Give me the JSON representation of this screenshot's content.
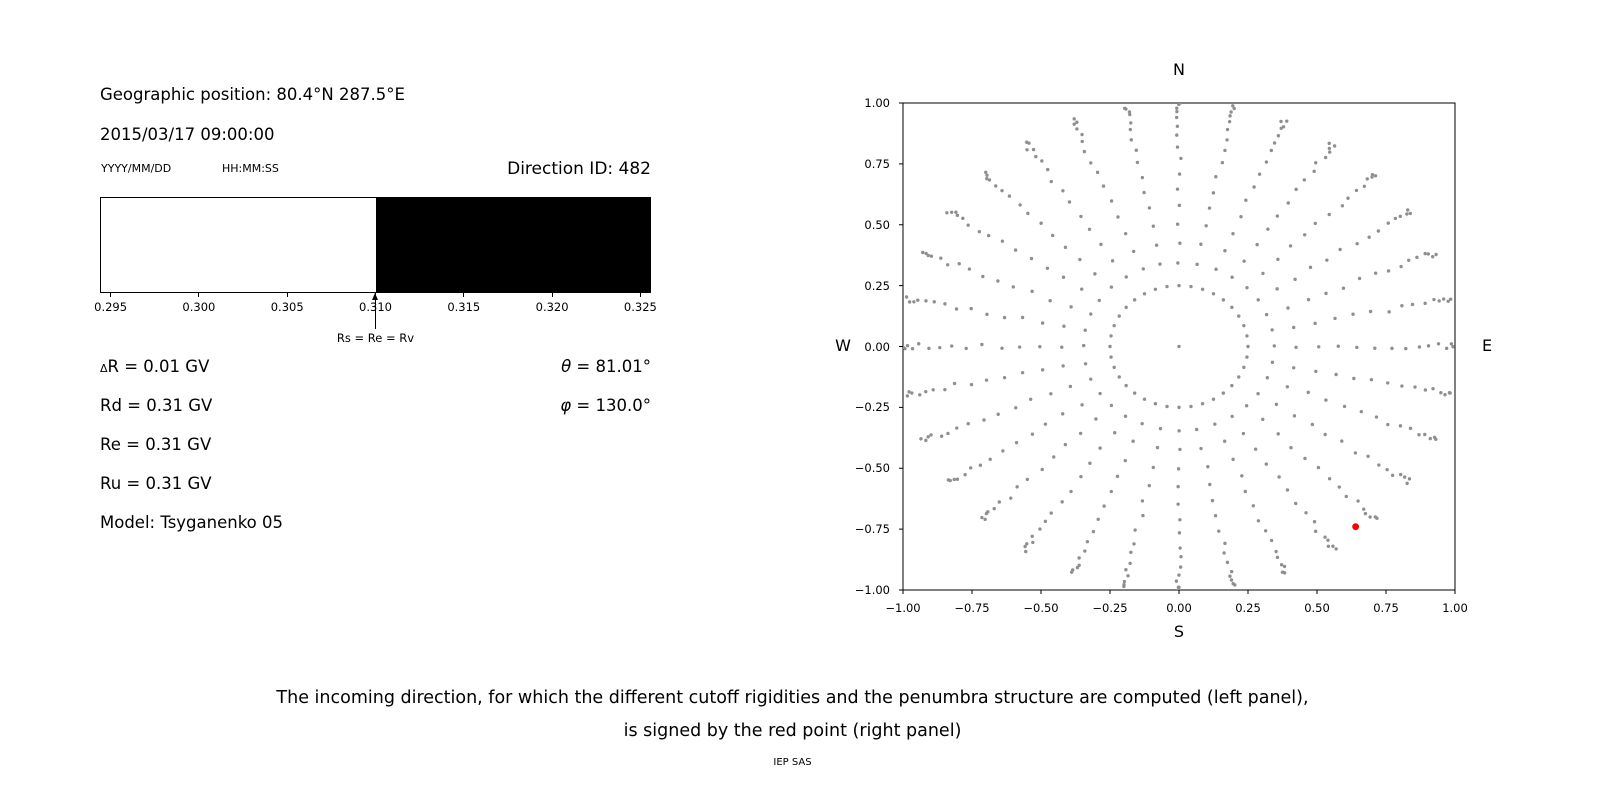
{
  "left_panel": {
    "geographic_position": "Geographic position: 80.4°N 287.5°E",
    "datetime": "2015/03/17 09:00:00",
    "date_format_label": "YYYY/MM/DD",
    "time_format_label": "HH:MM:SS",
    "direction_id": "Direction ID: 482",
    "delta_symbol": "Δ",
    "delta_r_text": "R = 0.01 GV",
    "rd": "Rd = 0.31 GV",
    "re": "Re = 0.31 GV",
    "ru": "Ru = 0.31 GV",
    "model": "Model: Tsyganenko 05",
    "theta_symbol": "θ",
    "theta_text": " = 81.01°",
    "phi_symbol": "φ",
    "phi_text": " = 130.0°"
  },
  "caption": {
    "line1": "The incoming direction, for which the different cutoff rigidities and the penumbra structure are computed (left panel),",
    "line2": "is signed by the red point (right panel)",
    "credit": "IEP SAS"
  },
  "chart_data": [
    {
      "type": "bar",
      "name": "penumbra-structure",
      "xlim": [
        0.2944,
        0.3256
      ],
      "bands": [
        {
          "from": 0.2944,
          "to": 0.31,
          "color": "#ffffff"
        },
        {
          "from": 0.31,
          "to": 0.3256,
          "color": "#000000"
        }
      ],
      "xticks": [
        0.295,
        0.3,
        0.305,
        0.31,
        0.315,
        0.32,
        0.325
      ],
      "xtick_labels": [
        "0.295",
        "0.300",
        "0.305",
        "0.310",
        "0.315",
        "0.320",
        "0.325"
      ],
      "annotation": {
        "x": 0.31,
        "label": "Rs = Re = Rv"
      }
    },
    {
      "type": "scatter",
      "name": "incoming-directions-sky-map",
      "xlim": [
        -1.0,
        1.0
      ],
      "ylim": [
        -1.0,
        1.0
      ],
      "xticks": [
        -1.0,
        -0.75,
        -0.5,
        -0.25,
        0.0,
        0.25,
        0.5,
        0.75,
        1.0
      ],
      "xtick_labels": [
        "−1.00",
        "−0.75",
        "−0.50",
        "−0.25",
        "0.00",
        "0.25",
        "0.50",
        "0.75",
        "1.00"
      ],
      "yticks": [
        1.0,
        0.75,
        0.5,
        0.25,
        0.0,
        -0.25,
        -0.5,
        -0.75,
        -1.0
      ],
      "ytick_labels": [
        "1.00",
        "0.75",
        "0.50",
        "0.25",
        "0.00",
        "−0.25",
        "−0.50",
        "−0.75",
        "−1.00"
      ],
      "compass": {
        "top": "N",
        "bottom": "S",
        "left": "W",
        "right": "E"
      },
      "grid": false,
      "dot_color": "#8f8f8f",
      "dot_radius_px": 1.7,
      "pattern": {
        "center_dot": true,
        "ring": {
          "radius": 0.25,
          "count": 36
        },
        "spokes": {
          "count": 32,
          "start_angle_deg": 0,
          "radii": [
            0.345,
            0.425,
            0.505,
            0.578,
            0.645,
            0.71,
            0.77,
            0.823,
            0.868,
            0.908,
            0.94,
            0.965,
            0.983,
            0.995,
            1.003
          ]
        },
        "jitter_deg": 0.7,
        "radial_jitter": 0.006
      },
      "highlight_point": {
        "x": 0.64,
        "y": -0.74,
        "color": "#ff0000",
        "radius_px": 3.4
      }
    }
  ]
}
